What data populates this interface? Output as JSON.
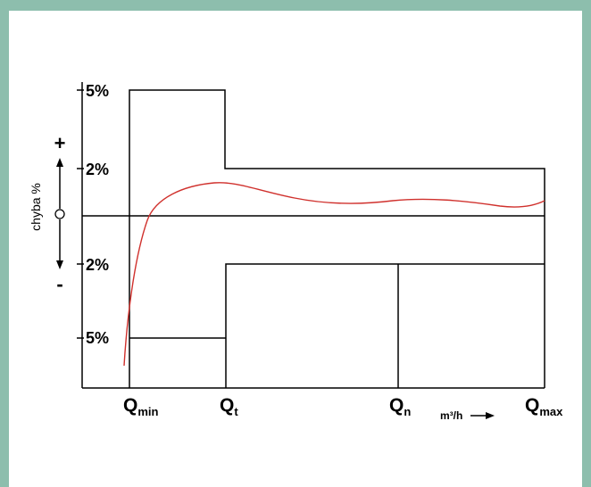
{
  "frame": {
    "border_color": "#8dbead",
    "background": "#ffffff"
  },
  "colors": {
    "lines": "#000000",
    "error_curve": "#d0312d"
  },
  "y_axis": {
    "label": "chyba %",
    "plus_sign": "+",
    "minus_sign": "-",
    "ticks": [
      "5%",
      "2%",
      "2%",
      "5%"
    ]
  },
  "x_axis": {
    "points": [
      {
        "main": "Q",
        "sub": "min"
      },
      {
        "main": "Q",
        "sub": "t"
      },
      {
        "main": "Q",
        "sub": "n"
      },
      {
        "main": "Q",
        "sub": "max"
      }
    ],
    "unit": "m³/h"
  }
}
